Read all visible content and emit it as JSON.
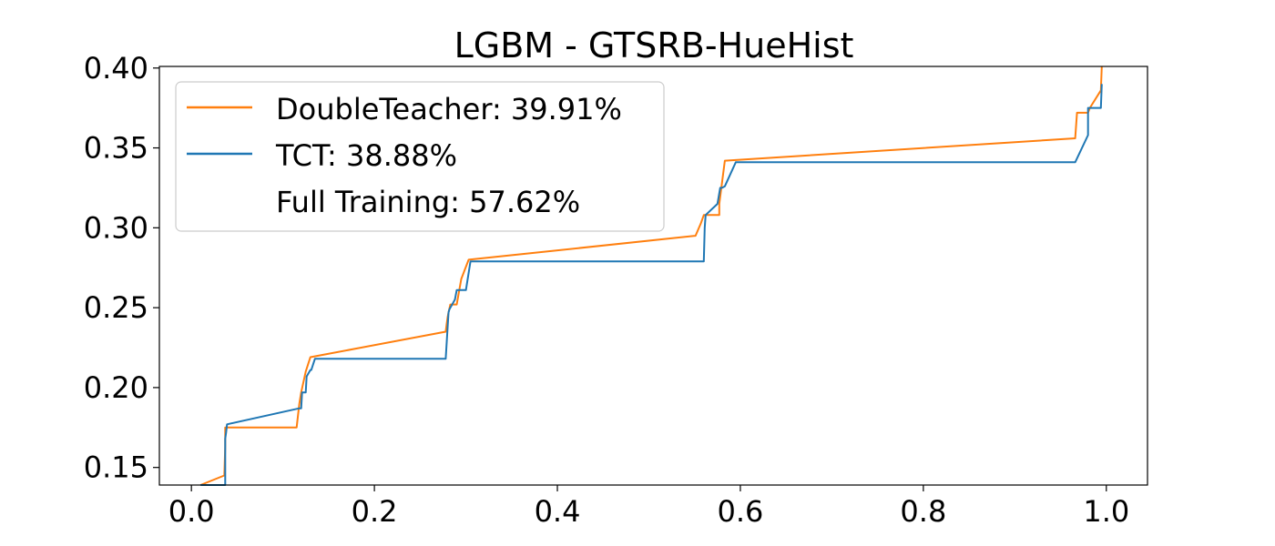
{
  "chart_data": {
    "type": "line",
    "title": "LGBM - GTSRB-HueHist",
    "xlabel": "",
    "ylabel": "",
    "xlim": [
      -0.035,
      1.045
    ],
    "ylim": [
      0.139,
      0.401
    ],
    "xticks": [
      0.0,
      0.2,
      0.4,
      0.6,
      0.8,
      1.0
    ],
    "xtick_labels": [
      "0.0",
      "0.2",
      "0.4",
      "0.6",
      "0.8",
      "1.0"
    ],
    "yticks": [
      0.15,
      0.2,
      0.25,
      0.3,
      0.35,
      0.4
    ],
    "ytick_labels": [
      "0.15",
      "0.20",
      "0.25",
      "0.30",
      "0.35",
      "0.40"
    ],
    "grid": false,
    "legend_position": "top-left",
    "legend": [
      {
        "label": "DoubleTeacher: 39.91%",
        "color": "#ff7f0e",
        "line": true
      },
      {
        "label": "TCT: 38.88%",
        "color": "#1f77b4",
        "line": true
      },
      {
        "label": "Full Training: 57.62%",
        "color": "none",
        "line": false
      }
    ],
    "series": [
      {
        "name": "DoubleTeacher",
        "color": "#ff7f0e",
        "x": [
          0.01,
          0.036,
          0.037,
          0.037,
          0.115,
          0.118,
          0.12,
          0.125,
          0.13,
          0.278,
          0.279,
          0.28,
          0.281,
          0.283,
          0.29,
          0.295,
          0.303,
          0.551,
          0.557,
          0.56,
          0.56,
          0.577,
          0.577,
          0.583,
          0.966,
          0.968,
          0.98,
          0.982,
          0.994,
          0.995
        ],
        "y": [
          0.139,
          0.145,
          0.163,
          0.175,
          0.175,
          0.19,
          0.197,
          0.21,
          0.219,
          0.235,
          0.24,
          0.244,
          0.247,
          0.252,
          0.252,
          0.268,
          0.28,
          0.295,
          0.303,
          0.308,
          0.308,
          0.308,
          0.315,
          0.342,
          0.356,
          0.372,
          0.372,
          0.375,
          0.386,
          0.401
        ]
      },
      {
        "name": "TCT",
        "color": "#1f77b4",
        "x": [
          0.01,
          0.037,
          0.037,
          0.038,
          0.039,
          0.118,
          0.12,
          0.121,
          0.125,
          0.126,
          0.13,
          0.131,
          0.135,
          0.278,
          0.281,
          0.282,
          0.288,
          0.29,
          0.295,
          0.3,
          0.305,
          0.56,
          0.561,
          0.562,
          0.575,
          0.578,
          0.58,
          0.583,
          0.595,
          0.966,
          0.98,
          0.98,
          0.985,
          0.994,
          0.995
        ],
        "y": [
          0.139,
          0.139,
          0.168,
          0.172,
          0.177,
          0.187,
          0.187,
          0.197,
          0.197,
          0.207,
          0.211,
          0.211,
          0.218,
          0.218,
          0.247,
          0.249,
          0.255,
          0.261,
          0.261,
          0.261,
          0.279,
          0.279,
          0.3,
          0.308,
          0.315,
          0.325,
          0.325,
          0.326,
          0.341,
          0.341,
          0.358,
          0.375,
          0.375,
          0.375,
          0.39
        ]
      }
    ]
  }
}
